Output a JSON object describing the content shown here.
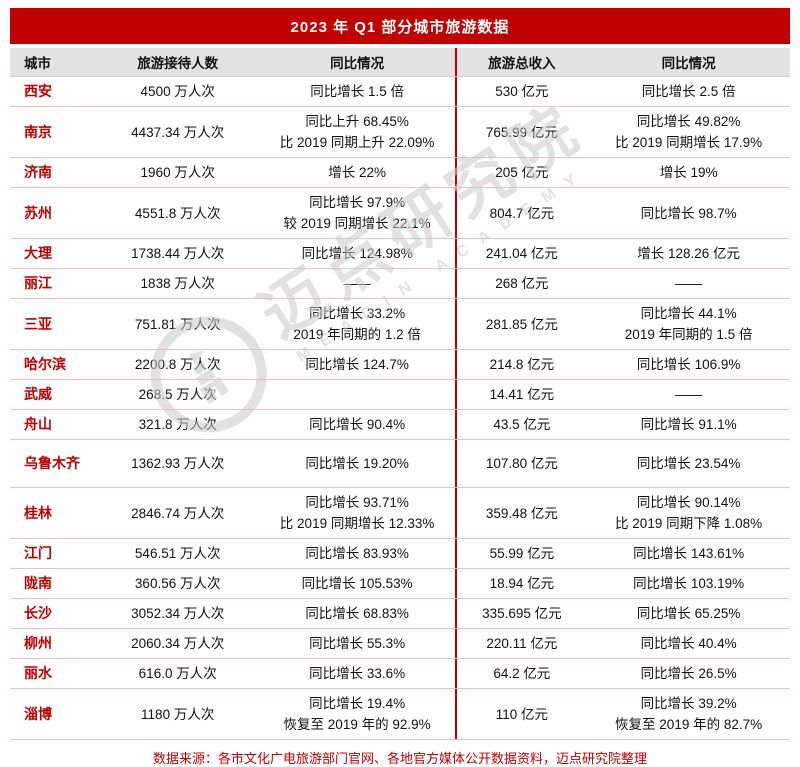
{
  "title_bar": {
    "title": "2023 年 Q1 部分城市旅游数据"
  },
  "footer": {
    "source_note": "数据来源：各市文化广电旅游部门官网、各地官方媒体公开数据资料，迈点研究院整理"
  },
  "watermark": {
    "text": "迈点研究院",
    "subtext": "MEADIN ACADEMY"
  },
  "colors": {
    "accent": "#C00000",
    "row_divider": "#F2BDBD",
    "header_bg": "#E2E2E2",
    "watermark": "#CACACA"
  },
  "chart_data": {
    "type": "table",
    "title": "2023 年 Q1 部分城市旅游数据",
    "columns": [
      "城市",
      "旅游接待人数",
      "同比情况",
      "旅游总收入",
      "同比情况"
    ],
    "rows": [
      {
        "city": "西安",
        "visitors": "4500 万人次",
        "visitors_yoy": [
          "同比增长 1.5 倍"
        ],
        "revenue": "530 亿元",
        "revenue_yoy": [
          "同比增长 2.5 倍"
        ]
      },
      {
        "city": "南京",
        "visitors": "4437.34 万人次",
        "visitors_yoy": [
          "同比上升 68.45%",
          "比 2019 同期上升 22.09%"
        ],
        "revenue": "765.99 亿元",
        "revenue_yoy": [
          "同比增长 49.82%",
          "比 2019 同期增长 17.9%"
        ]
      },
      {
        "city": "济南",
        "visitors": "1960 万人次",
        "visitors_yoy": [
          "增长 22%"
        ],
        "revenue": "205 亿元",
        "revenue_yoy": [
          "增长 19%"
        ]
      },
      {
        "city": "苏州",
        "visitors": "4551.8 万人次",
        "visitors_yoy": [
          "同比增长 97.9%",
          "较 2019 同期增长 22.1%"
        ],
        "revenue": "804.7 亿元",
        "revenue_yoy": [
          "同比增长 98.7%"
        ]
      },
      {
        "city": "大理",
        "visitors": "1738.44 万人次",
        "visitors_yoy": [
          "同比增长 124.98%"
        ],
        "revenue": "241.04 亿元",
        "revenue_yoy": [
          "增长 128.26 亿元"
        ]
      },
      {
        "city": "丽江",
        "visitors": "1838 万人次",
        "visitors_yoy": [
          "——"
        ],
        "revenue": "268 亿元",
        "revenue_yoy": [
          "——"
        ]
      },
      {
        "city": "三亚",
        "visitors": "751.81 万人次",
        "visitors_yoy": [
          "同比增长 33.2%",
          "2019 年同期的 1.2 倍"
        ],
        "revenue": "281.85 亿元",
        "revenue_yoy": [
          "同比增长 44.1%",
          "2019 年同期的 1.5 倍"
        ]
      },
      {
        "city": "哈尔滨",
        "visitors": "2200.8 万人次",
        "visitors_yoy": [
          "同比增长 124.7%"
        ],
        "revenue": "214.8 亿元",
        "revenue_yoy": [
          "同比增长 106.9%"
        ]
      },
      {
        "city": "武威",
        "visitors": "268.5 万人次",
        "visitors_yoy": [],
        "revenue": "14.41 亿元",
        "revenue_yoy": [
          "——"
        ]
      },
      {
        "city": "舟山",
        "visitors": "321.8 万人次",
        "visitors_yoy": [
          "同比增长 90.4%"
        ],
        "revenue": "43.5 亿元",
        "revenue_yoy": [
          "同比增长 91.1%"
        ]
      },
      {
        "city": "乌鲁木齐",
        "visitors": "1362.93 万人次",
        "visitors_yoy": [
          "同比增长 19.20%"
        ],
        "revenue": "107.80 亿元",
        "revenue_yoy": [
          "同比增长 23.54%"
        ],
        "tall": true
      },
      {
        "city": "桂林",
        "visitors": "2846.74 万人次",
        "visitors_yoy": [
          "同比增长 93.71%",
          "比 2019 同期增长 12.33%"
        ],
        "revenue": "359.48 亿元",
        "revenue_yoy": [
          "同比增长 90.14%",
          "比 2019 同期下降 1.08%"
        ]
      },
      {
        "city": "江门",
        "visitors": "546.51 万人次",
        "visitors_yoy": [
          "同比增长 83.93%"
        ],
        "revenue": "55.99 亿元",
        "revenue_yoy": [
          "同比增长 143.61%"
        ]
      },
      {
        "city": "陇南",
        "visitors": "360.56 万人次",
        "visitors_yoy": [
          "同比增长 105.53%"
        ],
        "revenue": "18.94 亿元",
        "revenue_yoy": [
          "同比增长 103.19%"
        ]
      },
      {
        "city": "长沙",
        "visitors": "3052.34 万人次",
        "visitors_yoy": [
          "同比增长 68.83%"
        ],
        "revenue": "335.695 亿元",
        "revenue_yoy": [
          "同比增长 65.25%"
        ]
      },
      {
        "city": "柳州",
        "visitors": "2060.34 万人次",
        "visitors_yoy": [
          "同比增长 55.3%"
        ],
        "revenue": "220.11 亿元",
        "revenue_yoy": [
          "同比增长 40.4%"
        ]
      },
      {
        "city": "丽水",
        "visitors": "616.0 万人次",
        "visitors_yoy": [
          "同比增长 33.6%"
        ],
        "revenue": "64.2 亿元",
        "revenue_yoy": [
          "同比增长 26.5%"
        ]
      },
      {
        "city": "淄博",
        "visitors": "1180 万人次",
        "visitors_yoy": [
          "同比增长 19.4%",
          "恢复至 2019 年的 92.9%"
        ],
        "revenue": "110 亿元",
        "revenue_yoy": [
          "同比增长 39.2%",
          "恢复至 2019 年的 82.7%"
        ]
      }
    ]
  }
}
